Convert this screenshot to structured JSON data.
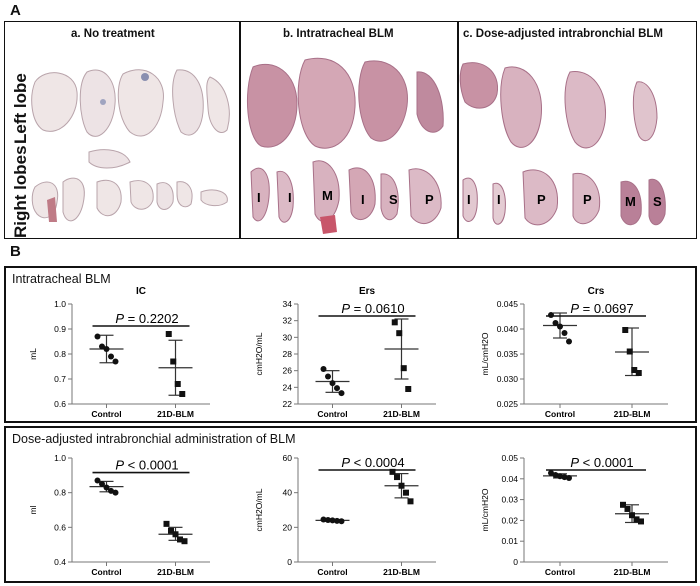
{
  "panel_a": {
    "letter": "A",
    "columns": [
      "a. No treatment",
      "b. Intratracheal BLM",
      "c. Dose-adjusted intrabronchial BLM"
    ],
    "rows": [
      "Left lobe",
      "Right lobes"
    ],
    "lobe_labels_b": [
      "I",
      "I",
      "M",
      "I",
      "S",
      "P"
    ],
    "lobe_labels_c": [
      "I",
      "I",
      "P",
      "P",
      "M",
      "S"
    ],
    "colors": {
      "normal_tissue": "#efe6e6",
      "fibrotic_tissue": "#bf8a9e",
      "outline": "#b9a4ab"
    }
  },
  "panel_b": {
    "letter": "B",
    "box1_title": "Intratracheal BLM",
    "box2_title": "Dose-adjusted intrabronchial administration of BLM"
  },
  "chart_data": [
    {
      "type": "scatter",
      "title": "IC",
      "ylabel": "mL",
      "categories": [
        "Control",
        "21D-BLM"
      ],
      "ylim": [
        0.6,
        1.0
      ],
      "yticks": [
        "0.6",
        "0.7",
        "0.8",
        "0.9",
        "1.0"
      ],
      "annotation": "P = 0.2202",
      "series": [
        {
          "values": [
            0.87,
            0.83,
            0.82,
            0.79,
            0.77
          ],
          "mean": 0.82,
          "sd_low": 0.765,
          "sd_high": 0.875,
          "marker": "circle"
        },
        {
          "values": [
            0.88,
            0.77,
            0.68,
            0.64
          ],
          "mean": 0.745,
          "sd_low": 0.635,
          "sd_high": 0.855,
          "marker": "square"
        }
      ]
    },
    {
      "type": "scatter",
      "title": "Ers",
      "ylabel": "cmH2O/mL",
      "categories": [
        "Control",
        "21D-BLM"
      ],
      "ylim": [
        22,
        34
      ],
      "yticks": [
        "22",
        "24",
        "26",
        "28",
        "30",
        "32",
        "34"
      ],
      "annotation": "P = 0.0610",
      "series": [
        {
          "values": [
            26.2,
            25.3,
            24.5,
            23.9,
            23.3
          ],
          "mean": 24.7,
          "sd_low": 23.4,
          "sd_high": 26.0,
          "marker": "circle"
        },
        {
          "values": [
            31.8,
            30.5,
            26.3,
            23.8
          ],
          "mean": 28.6,
          "sd_low": 25.0,
          "sd_high": 32.2,
          "marker": "square"
        }
      ]
    },
    {
      "type": "scatter",
      "title": "Crs",
      "ylabel": "mL/cmH2O",
      "categories": [
        "Control",
        "21D-BLM"
      ],
      "ylim": [
        0.025,
        0.045
      ],
      "yticks": [
        "0.025",
        "0.030",
        "0.035",
        "0.040",
        "0.045"
      ],
      "annotation": "P = 0.0697",
      "series": [
        {
          "values": [
            0.0428,
            0.0412,
            0.0405,
            0.0392,
            0.0375
          ],
          "mean": 0.0407,
          "sd_low": 0.0382,
          "sd_high": 0.0432,
          "marker": "circle"
        },
        {
          "values": [
            0.0398,
            0.0355,
            0.0318,
            0.0312
          ],
          "mean": 0.0354,
          "sd_low": 0.0307,
          "sd_high": 0.0402,
          "marker": "square"
        }
      ]
    },
    {
      "type": "scatter",
      "title": "",
      "ylabel": "ml",
      "categories": [
        "Control",
        "21D-BLM"
      ],
      "ylim": [
        0.4,
        1.0
      ],
      "yticks": [
        "0.4",
        "0.6",
        "0.8",
        "1.0"
      ],
      "annotation": "P < 0.0001",
      "series": [
        {
          "values": [
            0.87,
            0.85,
            0.83,
            0.81,
            0.8
          ],
          "mean": 0.835,
          "sd_low": 0.805,
          "sd_high": 0.865,
          "marker": "circle"
        },
        {
          "values": [
            0.62,
            0.58,
            0.56,
            0.53,
            0.52
          ],
          "mean": 0.56,
          "sd_low": 0.525,
          "sd_high": 0.6,
          "marker": "square"
        }
      ]
    },
    {
      "type": "scatter",
      "title": "",
      "ylabel": "cmH2O/mL",
      "categories": [
        "Control",
        "21D-BLM"
      ],
      "ylim": [
        0,
        60
      ],
      "yticks": [
        "0",
        "20",
        "40",
        "60"
      ],
      "annotation": "P < 0.0004",
      "series": [
        {
          "values": [
            24.5,
            24.2,
            24.0,
            23.7,
            23.5
          ],
          "mean": 24.0,
          "sd_low": 23.5,
          "sd_high": 24.5,
          "marker": "circle"
        },
        {
          "values": [
            52,
            49,
            44,
            40,
            35
          ],
          "mean": 44,
          "sd_low": 37,
          "sd_high": 51,
          "marker": "square"
        }
      ]
    },
    {
      "type": "scatter",
      "title": "",
      "ylabel": "mL/cmH2O",
      "categories": [
        "Control",
        "21D-BLM"
      ],
      "ylim": [
        0,
        0.05
      ],
      "yticks": [
        "0",
        "0.01",
        "0.02",
        "0.03",
        "0.04",
        "0.05"
      ],
      "annotation": "P < 0.0001",
      "series": [
        {
          "values": [
            0.0428,
            0.0418,
            0.0412,
            0.0408,
            0.0404
          ],
          "mean": 0.0414,
          "sd_low": 0.0404,
          "sd_high": 0.0424,
          "marker": "circle"
        },
        {
          "values": [
            0.0275,
            0.0255,
            0.0225,
            0.0205,
            0.0195
          ],
          "mean": 0.0232,
          "sd_low": 0.019,
          "sd_high": 0.0275,
          "marker": "square"
        }
      ]
    }
  ]
}
